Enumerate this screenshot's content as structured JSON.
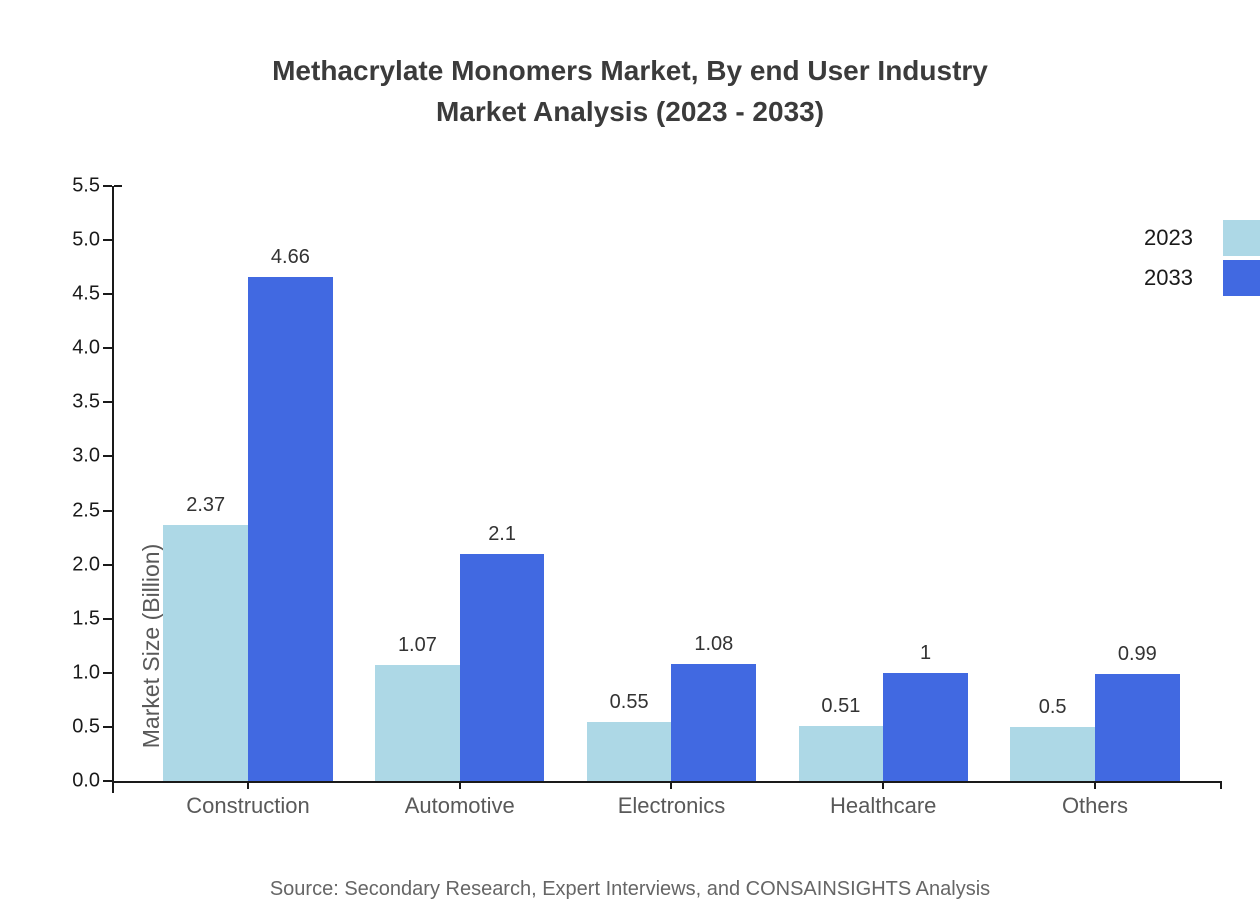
{
  "title": {
    "line1": "Methacrylate Monomers Market, By end User Industry",
    "line2": "Market Analysis (2023 - 2033)"
  },
  "source": "Source: Secondary Research, Expert Interviews, and CONSAINSIGHTS Analysis",
  "chart_data": {
    "type": "bar",
    "title": "Methacrylate Monomers Market, By end User Industry Market Analysis (2023 - 2033)",
    "categories": [
      "Construction",
      "Automotive",
      "Electronics",
      "Healthcare",
      "Others"
    ],
    "series": [
      {
        "name": "2023",
        "color": "#ADD8E6",
        "values": [
          2.37,
          1.07,
          0.55,
          0.51,
          0.5
        ]
      },
      {
        "name": "2033",
        "color": "#4169E1",
        "values": [
          4.66,
          2.1,
          1.08,
          1,
          0.99
        ]
      }
    ],
    "xlabel": "",
    "ylabel": "Market Size (Billion)",
    "ylim": [
      0,
      5.5
    ],
    "ytick_step": 0.5,
    "yticks": [
      "0.0",
      "0.5",
      "1.0",
      "1.5",
      "2.0",
      "2.5",
      "3.0",
      "3.5",
      "4.0",
      "4.5",
      "5.0",
      "5.5"
    ],
    "grid": false,
    "legend_position": "upper right"
  }
}
